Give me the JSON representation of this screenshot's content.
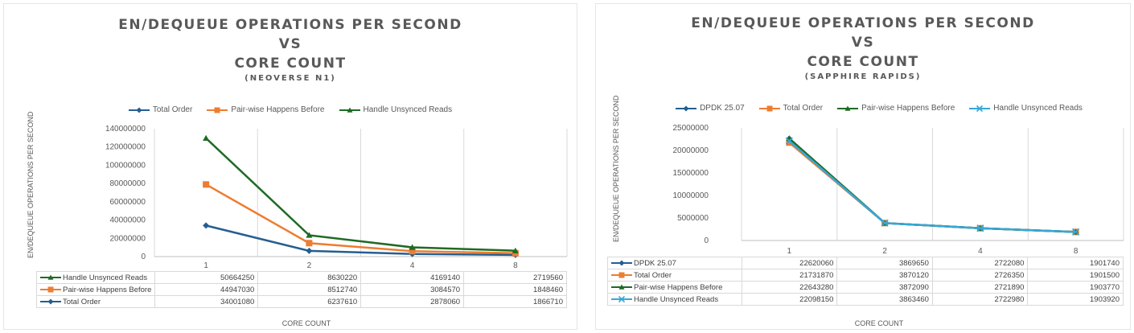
{
  "chart_data": [
    {
      "type": "line",
      "title_lines": [
        "EN/DEQUEUE OPERATIONS PER SECOND",
        "VS",
        "CORE COUNT"
      ],
      "subtitle": "(NEOVERSE N1)",
      "xlabel": "CORE COUNT",
      "ylabel": "EN/DEQUEUE OPERATIONS PER SECOND",
      "categories": [
        "1",
        "2",
        "4",
        "8"
      ],
      "ylim": [
        0,
        140000000
      ],
      "yticks": [
        "0",
        "20000000",
        "40000000",
        "60000000",
        "80000000",
        "100000000",
        "120000000",
        "140000000"
      ],
      "legend_position": "top",
      "legend": [
        "Total Order",
        "Pair-wise Happens Before",
        "Handle Unsynced Reads"
      ],
      "series": [
        {
          "name": "Total Order",
          "color": "#255e91",
          "marker": "diamond",
          "values": [
            34001080,
            6237610,
            2878060,
            1866710
          ],
          "plot_values": [
            34001080,
            6237610,
            2878060,
            1866710
          ]
        },
        {
          "name": "Pair-wise Happens Before",
          "color": "#ed7d31",
          "marker": "square",
          "values": [
            44947030,
            8512740,
            3084570,
            1848460
          ],
          "plot_values": [
            78948110,
            14750350,
            5962630,
            3715170
          ]
        },
        {
          "name": "Handle Unsynced Reads",
          "color": "#1e6b24",
          "marker": "triangle",
          "values": [
            50664250,
            8630220,
            4169140,
            2719560
          ],
          "plot_values": [
            129612360,
            23380570,
            10131770,
            6434730
          ]
        }
      ],
      "table_rows": [
        {
          "name": "Handle Unsynced Reads",
          "color": "#1e6b24",
          "marker": "triangle",
          "values": [
            "50664250",
            "8630220",
            "4169140",
            "2719560"
          ]
        },
        {
          "name": "Pair-wise Happens Before",
          "color": "#ed7d31",
          "marker": "square",
          "values": [
            "44947030",
            "8512740",
            "3084570",
            "1848460"
          ]
        },
        {
          "name": "Total Order",
          "color": "#255e91",
          "marker": "diamond",
          "values": [
            "34001080",
            "6237610",
            "2878060",
            "1866710"
          ]
        }
      ]
    },
    {
      "type": "line",
      "title_lines": [
        "EN/DEQUEUE OPERATIONS PER SECOND",
        "VS",
        "CORE COUNT"
      ],
      "subtitle": "(SAPPHIRE RAPIDS)",
      "xlabel": "CORE COUNT",
      "ylabel": "EN/DEQUEUE OPERATIONS PER SECOND",
      "categories": [
        "1",
        "2",
        "4",
        "8"
      ],
      "ylim": [
        0,
        25000000
      ],
      "yticks": [
        "0",
        "5000000",
        "10000000",
        "15000000",
        "20000000",
        "25000000"
      ],
      "legend_position": "top",
      "legend": [
        "DPDK 25.07",
        "Total Order",
        "Pair-wise Happens Before",
        "Handle Unsynced Reads"
      ],
      "series": [
        {
          "name": "DPDK 25.07",
          "color": "#255e91",
          "marker": "diamond",
          "values": [
            22620060,
            3869650,
            2722080,
            1901740
          ],
          "plot_values": [
            22620060,
            3869650,
            2722080,
            1901740
          ]
        },
        {
          "name": "Total Order",
          "color": "#ed7d31",
          "marker": "square",
          "values": [
            21731870,
            3870120,
            2726350,
            1901500
          ],
          "plot_values": [
            21731870,
            3870120,
            2726350,
            1901500
          ]
        },
        {
          "name": "Pair-wise Happens Before",
          "color": "#1e6b24",
          "marker": "triangle",
          "values": [
            22643280,
            3872090,
            2721890,
            1903770
          ],
          "plot_values": [
            22643280,
            3872090,
            2721890,
            1903770
          ]
        },
        {
          "name": "Handle Unsynced Reads",
          "color": "#35a7d8",
          "marker": "x",
          "values": [
            22098150,
            3863460,
            2722980,
            1903920
          ],
          "plot_values": [
            22098150,
            3863460,
            2722980,
            1903920
          ]
        }
      ],
      "table_rows": [
        {
          "name": "DPDK 25.07",
          "color": "#255e91",
          "marker": "diamond",
          "values": [
            "22620060",
            "3869650",
            "2722080",
            "1901740"
          ]
        },
        {
          "name": "Total Order",
          "color": "#ed7d31",
          "marker": "square",
          "values": [
            "21731870",
            "3870120",
            "2726350",
            "1901500"
          ]
        },
        {
          "name": "Pair-wise Happens Before",
          "color": "#1e6b24",
          "marker": "triangle",
          "values": [
            "22643280",
            "3872090",
            "2721890",
            "1903770"
          ]
        },
        {
          "name": "Handle Unsynced Reads",
          "color": "#35a7d8",
          "marker": "x",
          "values": [
            "22098150",
            "3863460",
            "2722980",
            "1903920"
          ]
        }
      ]
    }
  ]
}
